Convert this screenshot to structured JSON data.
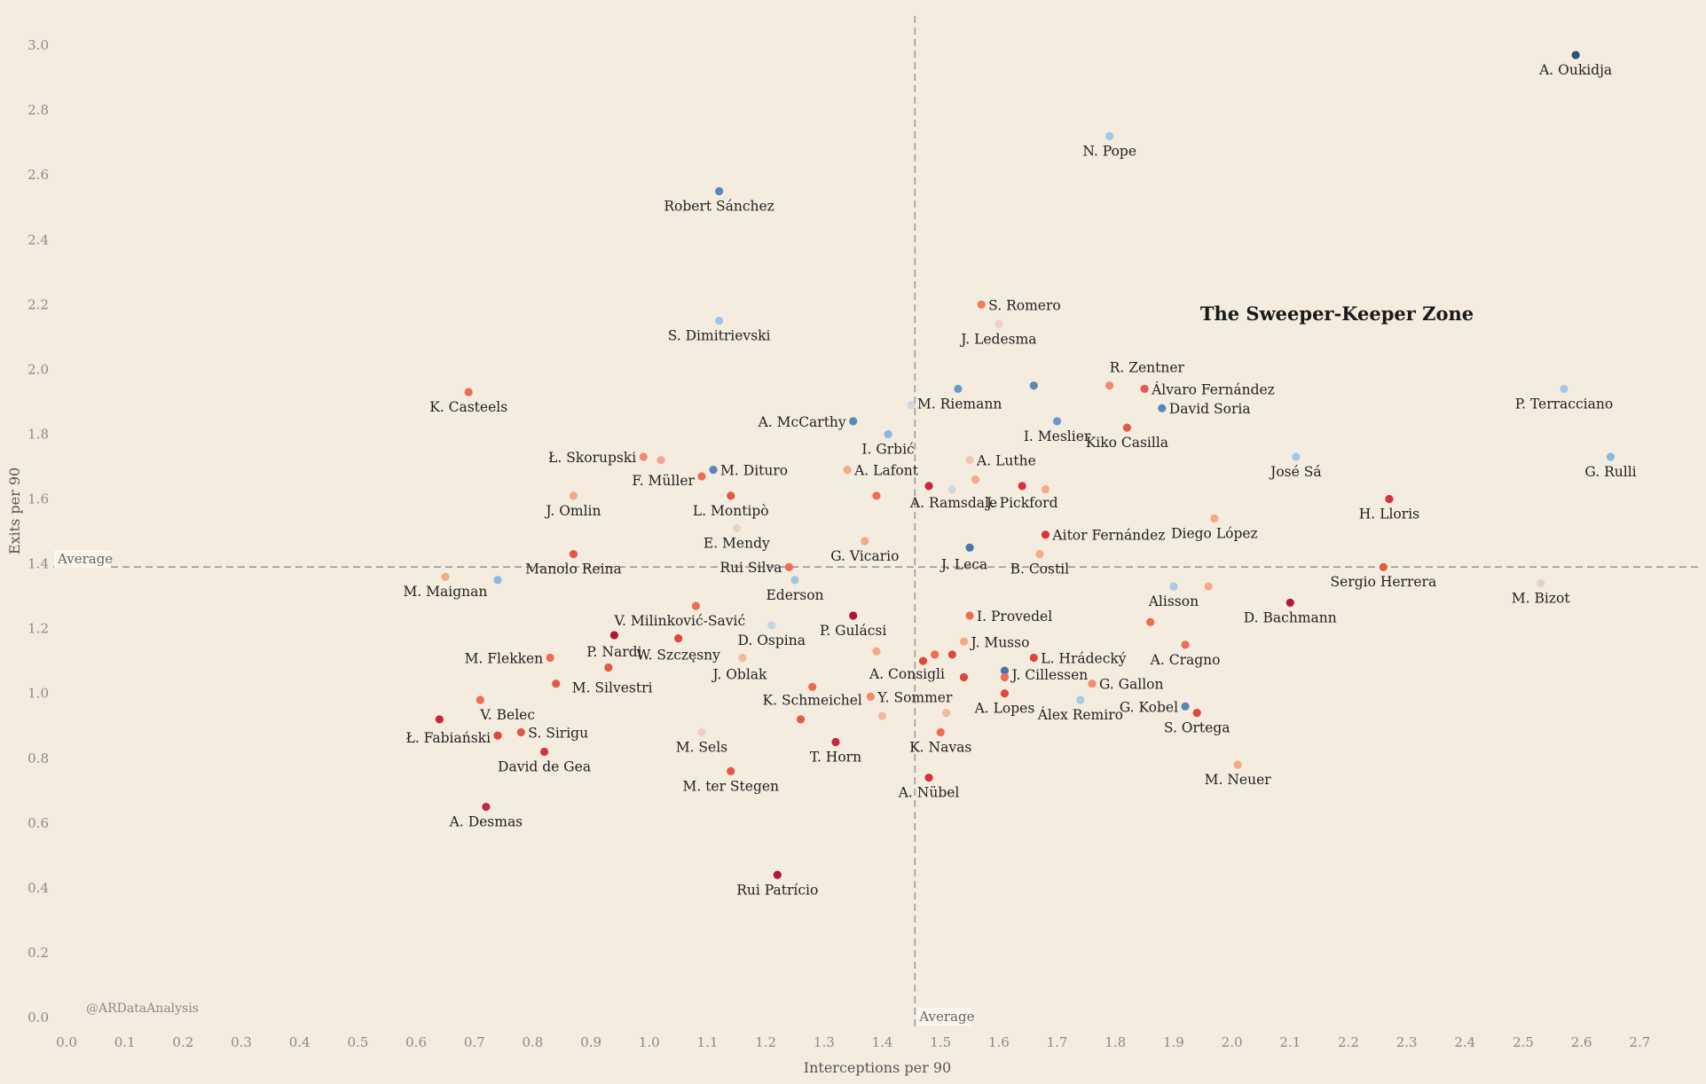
{
  "chart_data": {
    "type": "scatter",
    "xlabel": "Interceptions per 90",
    "ylabel": "Exits per 90",
    "xlim": [
      0.0,
      2.85
    ],
    "ylim": [
      0.0,
      3.1
    ],
    "xticks": [
      "0.0",
      "0.1",
      "0.2",
      "0.3",
      "0.4",
      "0.5",
      "0.6",
      "0.7",
      "0.8",
      "0.9",
      "1.0",
      "1.1",
      "1.2",
      "1.3",
      "1.4",
      "1.5",
      "1.6",
      "1.7",
      "1.8",
      "1.9",
      "2.0",
      "2.1",
      "2.2",
      "2.3",
      "2.4",
      "2.5",
      "2.6",
      "2.7"
    ],
    "yticks": [
      "0.0",
      "0.2",
      "0.4",
      "0.6",
      "0.8",
      "1.0",
      "1.2",
      "1.4",
      "1.6",
      "1.8",
      "2.0",
      "2.2",
      "2.4",
      "2.6",
      "2.8",
      "3.0"
    ],
    "average": {
      "x": 1.456,
      "y": 1.39,
      "x_label": "Average",
      "y_label": "Average"
    },
    "annotation": "The Sweeper-Keeper Zone",
    "credit": "@ARDataAnalysis",
    "grid": false,
    "points": [
      {
        "name": "A. Oukidja",
        "x": 2.59,
        "y": 2.97,
        "color": "#2e5078"
      },
      {
        "name": "N. Pope",
        "x": 1.79,
        "y": 2.72,
        "color": "#9ec8e6"
      },
      {
        "name": "Robert Sánchez",
        "x": 1.12,
        "y": 2.55,
        "color": "#5b86b8"
      },
      {
        "name": "S. Romero",
        "x": 1.57,
        "y": 2.2,
        "color": "#ef7b62"
      },
      {
        "name": "J. Ledesma",
        "x": 1.6,
        "y": 2.14,
        "color": "#eecfc4"
      },
      {
        "name": "S. Dimitrievski",
        "x": 1.12,
        "y": 2.15,
        "color": "#9ec8e6"
      },
      {
        "name": "R. Zentner",
        "x": 1.79,
        "y": 1.95,
        "color": "#f08b6c"
      },
      {
        "name": "Álvaro Fernández",
        "x": 1.85,
        "y": 1.94,
        "color": "#e7584d"
      },
      {
        "name": "David Soria",
        "x": 1.88,
        "y": 1.88,
        "color": "#5b86b8"
      },
      {
        "name": "",
        "x": 1.66,
        "y": 1.95,
        "color": "#5b86b8"
      },
      {
        "name": "M. Riemann",
        "x": 1.53,
        "y": 1.94,
        "color": "#6a98c8"
      },
      {
        "name": "",
        "x": 1.45,
        "y": 1.89,
        "color": "#d0d6de"
      },
      {
        "name": "A. McCarthy",
        "x": 1.35,
        "y": 1.84,
        "color": "#5b86b8"
      },
      {
        "name": "I. Meslier",
        "x": 1.7,
        "y": 1.84,
        "color": "#6a98c8"
      },
      {
        "name": "Kiko Casilla",
        "x": 1.82,
        "y": 1.82,
        "color": "#e05a45"
      },
      {
        "name": "I. Grbić",
        "x": 1.41,
        "y": 1.8,
        "color": "#8ab8df"
      },
      {
        "name": "K. Casteels",
        "x": 0.69,
        "y": 1.93,
        "color": "#ee6c54"
      },
      {
        "name": "P. Terracciano",
        "x": 2.57,
        "y": 1.94,
        "color": "#9ec8e6"
      },
      {
        "name": "G. Rulli",
        "x": 2.65,
        "y": 1.73,
        "color": "#8ab8df"
      },
      {
        "name": "José Sá",
        "x": 2.11,
        "y": 1.73,
        "color": "#9ec8e6"
      },
      {
        "name": "Ł. Skorupski",
        "x": 0.99,
        "y": 1.73,
        "color": "#f08b6c"
      },
      {
        "name": "",
        "x": 1.02,
        "y": 1.72,
        "color": "#f3a78c"
      },
      {
        "name": "M. Dituro",
        "x": 1.11,
        "y": 1.69,
        "color": "#5b86b8"
      },
      {
        "name": "F. Müller",
        "x": 1.09,
        "y": 1.67,
        "color": "#ee6c54"
      },
      {
        "name": "A. Lafont",
        "x": 1.34,
        "y": 1.69,
        "color": "#f4a988"
      },
      {
        "name": "A. Luthe",
        "x": 1.55,
        "y": 1.72,
        "color": "#f0c6b8"
      },
      {
        "name": "",
        "x": 1.56,
        "y": 1.66,
        "color": "#f4a988"
      },
      {
        "name": "",
        "x": 1.52,
        "y": 1.63,
        "color": "#d0d6de"
      },
      {
        "name": "A. Ramsdale",
        "x": 1.48,
        "y": 1.64,
        "color": "#c8243c"
      },
      {
        "name": "J. Pickford",
        "x": 1.64,
        "y": 1.64,
        "color": "#d9303e"
      },
      {
        "name": "",
        "x": 1.68,
        "y": 1.63,
        "color": "#f4a988"
      },
      {
        "name": "",
        "x": 1.39,
        "y": 1.61,
        "color": "#ee6c54"
      },
      {
        "name": "L. Montipò",
        "x": 1.14,
        "y": 1.61,
        "color": "#e05a45"
      },
      {
        "name": "J. Omlin",
        "x": 0.87,
        "y": 1.61,
        "color": "#f3a78c"
      },
      {
        "name": "H. Lloris",
        "x": 2.27,
        "y": 1.6,
        "color": "#d9303e"
      },
      {
        "name": "Diego López",
        "x": 1.97,
        "y": 1.54,
        "color": "#f4a988"
      },
      {
        "name": "E. Mendy",
        "x": 1.15,
        "y": 1.51,
        "color": "#eecfc4"
      },
      {
        "name": "Aitor Fernández",
        "x": 1.68,
        "y": 1.49,
        "color": "#d9303e"
      },
      {
        "name": "G. Vicario",
        "x": 1.37,
        "y": 1.47,
        "color": "#f4a988"
      },
      {
        "name": "J. Leca",
        "x": 1.55,
        "y": 1.45,
        "color": "#4a76ad"
      },
      {
        "name": "B. Costil",
        "x": 1.67,
        "y": 1.43,
        "color": "#f4a988"
      },
      {
        "name": "Manolo Reina",
        "x": 0.87,
        "y": 1.43,
        "color": "#e05a45"
      },
      {
        "name": "Rui Silva",
        "x": 1.24,
        "y": 1.39,
        "color": "#ee6c54"
      },
      {
        "name": "Sergio Herrera",
        "x": 2.26,
        "y": 1.39,
        "color": "#e05a45"
      },
      {
        "name": "M. Maignan",
        "x": 0.65,
        "y": 1.36,
        "color": "#f4a988"
      },
      {
        "name": "",
        "x": 0.74,
        "y": 1.35,
        "color": "#8ab8df"
      },
      {
        "name": "Ederson",
        "x": 1.25,
        "y": 1.35,
        "color": "#9ec8e6"
      },
      {
        "name": "M. Bizot",
        "x": 2.53,
        "y": 1.34,
        "color": "#e3d3cd"
      },
      {
        "name": "Alisson",
        "x": 1.9,
        "y": 1.33,
        "color": "#a8cce6"
      },
      {
        "name": "",
        "x": 1.96,
        "y": 1.33,
        "color": "#f4a988"
      },
      {
        "name": "D. Bachmann",
        "x": 2.1,
        "y": 1.28,
        "color": "#b5162e"
      },
      {
        "name": "V. Milinković-Savić",
        "x": 1.08,
        "y": 1.27,
        "color": "#ee6c54"
      },
      {
        "name": "P. Gulácsi",
        "x": 1.35,
        "y": 1.24,
        "color": "#b5162e"
      },
      {
        "name": "I. Provedel",
        "x": 1.55,
        "y": 1.24,
        "color": "#ee6c54"
      },
      {
        "name": "",
        "x": 1.86,
        "y": 1.22,
        "color": "#ee6c54"
      },
      {
        "name": "D. Ospina",
        "x": 1.21,
        "y": 1.21,
        "color": "#c5d3e3"
      },
      {
        "name": "P. Nardi",
        "x": 0.94,
        "y": 1.18,
        "color": "#b5162e"
      },
      {
        "name": "W. Szczęsny",
        "x": 1.05,
        "y": 1.17,
        "color": "#e0473c"
      },
      {
        "name": "J. Musso",
        "x": 1.54,
        "y": 1.16,
        "color": "#f4a988"
      },
      {
        "name": "A. Cragno",
        "x": 1.92,
        "y": 1.15,
        "color": "#ee6c54"
      },
      {
        "name": "",
        "x": 1.39,
        "y": 1.13,
        "color": "#f4a988"
      },
      {
        "name": "",
        "x": 1.49,
        "y": 1.12,
        "color": "#ee6c54"
      },
      {
        "name": "",
        "x": 1.52,
        "y": 1.12,
        "color": "#e0473c"
      },
      {
        "name": "M. Flekken",
        "x": 0.83,
        "y": 1.11,
        "color": "#ee6c54"
      },
      {
        "name": "J. Oblak",
        "x": 1.16,
        "y": 1.11,
        "color": "#f4b7a1"
      },
      {
        "name": "L. Hrádecký",
        "x": 1.66,
        "y": 1.11,
        "color": "#e0473c"
      },
      {
        "name": "A. Consigli",
        "x": 1.47,
        "y": 1.1,
        "color": "#e0473c"
      },
      {
        "name": "M. Silvestri",
        "x": 0.84,
        "y": 1.03,
        "color": "#e05a45"
      },
      {
        "name": "",
        "x": 0.93,
        "y": 1.08,
        "color": "#e05a45"
      },
      {
        "name": "J. Cillessen",
        "x": 1.61,
        "y": 1.07,
        "color": "#4a76ad"
      },
      {
        "name": "",
        "x": 1.61,
        "y": 1.05,
        "color": "#ee6c54"
      },
      {
        "name": "",
        "x": 1.54,
        "y": 1.05,
        "color": "#e0473c"
      },
      {
        "name": "G. Gallon",
        "x": 1.76,
        "y": 1.03,
        "color": "#f08b6c"
      },
      {
        "name": "K. Schmeichel",
        "x": 1.28,
        "y": 1.02,
        "color": "#ee6c54"
      },
      {
        "name": "A. Lopes",
        "x": 1.61,
        "y": 1.0,
        "color": "#e0473c"
      },
      {
        "name": "Y. Sommer",
        "x": 1.38,
        "y": 0.99,
        "color": "#f08b6c"
      },
      {
        "name": "Álex Remiro",
        "x": 1.74,
        "y": 0.98,
        "color": "#a8cce6"
      },
      {
        "name": "V. Belec",
        "x": 0.71,
        "y": 0.98,
        "color": "#ee6c54"
      },
      {
        "name": "G. Kobel",
        "x": 1.92,
        "y": 0.96,
        "color": "#5b86b8"
      },
      {
        "name": "S. Ortega",
        "x": 1.94,
        "y": 0.94,
        "color": "#e0473c"
      },
      {
        "name": "",
        "x": 1.51,
        "y": 0.94,
        "color": "#f4b7a1"
      },
      {
        "name": "",
        "x": 1.4,
        "y": 0.93,
        "color": "#f4b7a1"
      },
      {
        "name": "",
        "x": 1.26,
        "y": 0.92,
        "color": "#e05a45"
      },
      {
        "name": "",
        "x": 0.64,
        "y": 0.92,
        "color": "#c8243c"
      },
      {
        "name": "S. Sirigu",
        "x": 0.78,
        "y": 0.88,
        "color": "#e05a45"
      },
      {
        "name": "Ł. Fabiański",
        "x": 0.74,
        "y": 0.87,
        "color": "#e0473c"
      },
      {
        "name": "M. Sels",
        "x": 1.09,
        "y": 0.88,
        "color": "#e8cfc5"
      },
      {
        "name": "K. Navas",
        "x": 1.5,
        "y": 0.88,
        "color": "#ee6c54"
      },
      {
        "name": "T. Horn",
        "x": 1.32,
        "y": 0.85,
        "color": "#c8243c"
      },
      {
        "name": "David de Gea",
        "x": 0.82,
        "y": 0.82,
        "color": "#d9303e"
      },
      {
        "name": "M. Neuer",
        "x": 2.01,
        "y": 0.78,
        "color": "#f4a988"
      },
      {
        "name": "M. ter Stegen",
        "x": 1.14,
        "y": 0.76,
        "color": "#e05a45"
      },
      {
        "name": "A. Nübel",
        "x": 1.48,
        "y": 0.74,
        "color": "#d9303e"
      },
      {
        "name": "A. Desmas",
        "x": 0.72,
        "y": 0.65,
        "color": "#c8243c"
      },
      {
        "name": "Rui Patrício",
        "x": 1.22,
        "y": 0.44,
        "color": "#b5162e"
      }
    ]
  }
}
